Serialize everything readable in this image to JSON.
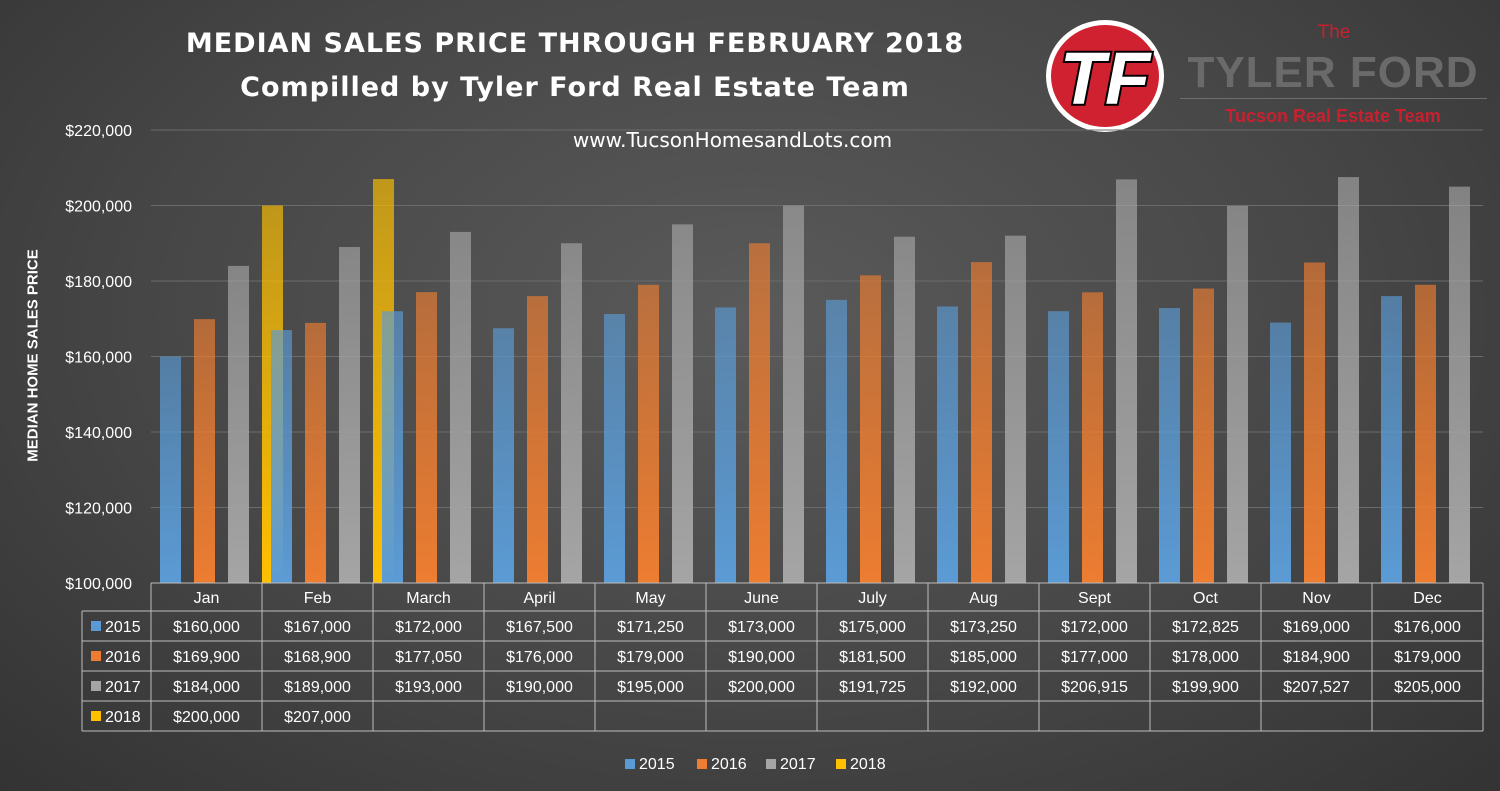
{
  "header": {
    "title_line1": "MEDIAN SALES PRICE THROUGH FEBRUARY 2018",
    "title_line2": "Compilled by Tyler Ford Real Estate Team",
    "website": "www.TucsonHomesandLots.com"
  },
  "brand": {
    "logo_text": "TF",
    "the": "The",
    "name": "TYLER FORD",
    "team": "Tucson Real Estate Team"
  },
  "chart_data": {
    "type": "bar",
    "title": "MEDIAN SALES PRICE THROUGH FEBRUARY 2018",
    "ylabel": "MEDIAN HOME SALES PRICE",
    "xlabel": "",
    "ylim": [
      100000,
      220000
    ],
    "yticks": [
      "$100,000",
      "$120,000",
      "$140,000",
      "$160,000",
      "$180,000",
      "$200,000",
      "$220,000"
    ],
    "ytick_values": [
      100000,
      120000,
      140000,
      160000,
      180000,
      200000,
      220000
    ],
    "grid": true,
    "legend_position": "bottom",
    "categories": [
      "Jan",
      "Feb",
      "March",
      "April",
      "May",
      "June",
      "July",
      "Aug",
      "Sept",
      "Oct",
      "Nov",
      "Dec"
    ],
    "series": [
      {
        "name": "2015",
        "color": "#5b9bd5",
        "values": [
          160000,
          167000,
          172000,
          167500,
          171250,
          173000,
          175000,
          173250,
          172000,
          172825,
          169000,
          176000
        ],
        "labels": [
          "$160,000",
          "$167,000",
          "$172,000",
          "$167,500",
          "$171,250",
          "$173,000",
          "$175,000",
          "$173,250",
          "$172,000",
          "$172,825",
          "$169,000",
          "$176,000"
        ]
      },
      {
        "name": "2016",
        "color": "#ed7d31",
        "values": [
          169900,
          168900,
          177050,
          176000,
          179000,
          190000,
          181500,
          185000,
          177000,
          178000,
          184900,
          179000
        ],
        "labels": [
          "$169,900",
          "$168,900",
          "$177,050",
          "$176,000",
          "$179,000",
          "$190,000",
          "$181,500",
          "$185,000",
          "$177,000",
          "$178,000",
          "$184,900",
          "$179,000"
        ]
      },
      {
        "name": "2017",
        "color": "#a5a5a5",
        "values": [
          184000,
          189000,
          193000,
          190000,
          195000,
          200000,
          191725,
          192000,
          206915,
          199900,
          207527,
          205000
        ],
        "labels": [
          "$184,000",
          "$189,000",
          "$193,000",
          "$190,000",
          "$195,000",
          "$200,000",
          "$191,725",
          "$192,000",
          "$206,915",
          "$199,900",
          "$207,527",
          "$205,000"
        ]
      },
      {
        "name": "2018",
        "color": "#ffc000",
        "values": [
          200000,
          207000,
          null,
          null,
          null,
          null,
          null,
          null,
          null,
          null,
          null,
          null
        ],
        "labels": [
          "$200,000",
          "$207,000",
          "",
          "",
          "",
          "",
          "",
          "",
          "",
          "",
          "",
          ""
        ]
      }
    ]
  }
}
